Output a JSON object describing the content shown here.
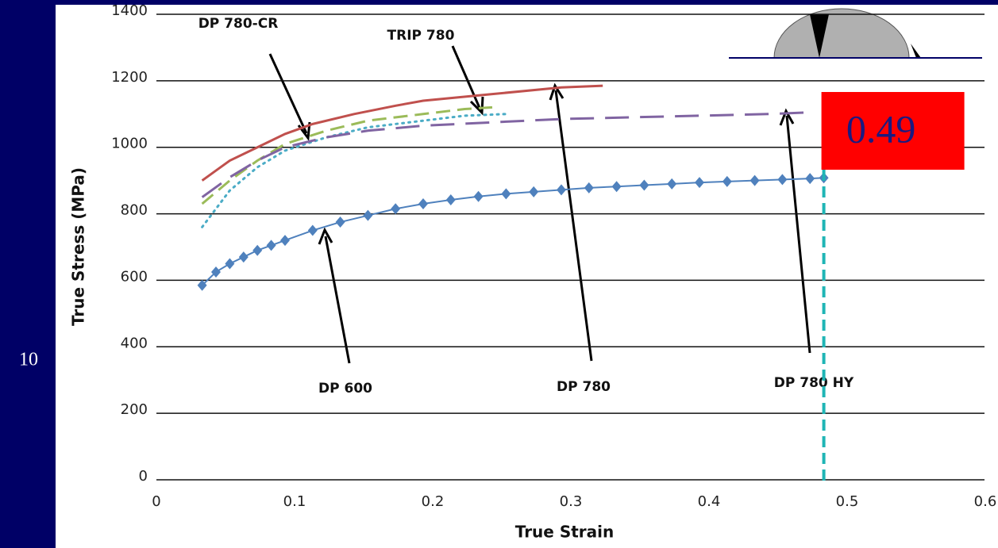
{
  "slide_number": "10",
  "chart_data": {
    "type": "line",
    "y_label": "True Stress (MPa)",
    "x_label": "True Strain",
    "xlim": [
      0,
      0.6
    ],
    "xticks": [
      0,
      0.1,
      0.2,
      0.3,
      0.4,
      0.5,
      0.6
    ],
    "ylim": [
      0,
      1400
    ],
    "yticks": [
      0,
      200,
      400,
      600,
      800,
      1000,
      1200,
      1400
    ],
    "grid": true,
    "marker_x": 0.49,
    "series": [
      {
        "name": "DP 780",
        "color": "#c0504d",
        "style": "solid",
        "x": [
          0.04,
          0.05,
          0.06,
          0.08,
          0.1,
          0.12,
          0.15,
          0.18,
          0.2,
          0.25,
          0.3,
          0.33
        ],
        "values": [
          900,
          930,
          960,
          1000,
          1040,
          1070,
          1100,
          1125,
          1140,
          1160,
          1180,
          1185
        ]
      },
      {
        "name": "DP 780-CR",
        "color": "#9bbb59",
        "style": "dashed",
        "x": [
          0.04,
          0.06,
          0.08,
          0.1,
          0.13,
          0.16,
          0.2,
          0.23,
          0.25
        ],
        "values": [
          830,
          900,
          960,
          1010,
          1050,
          1080,
          1100,
          1115,
          1120
        ]
      },
      {
        "name": "TRIP 780",
        "color": "#4bacc6",
        "style": "dotted",
        "x": [
          0.04,
          0.06,
          0.08,
          0.1,
          0.13,
          0.16,
          0.2,
          0.23,
          0.26
        ],
        "values": [
          760,
          870,
          940,
          990,
          1030,
          1060,
          1080,
          1095,
          1100
        ]
      },
      {
        "name": "DP 780 HY",
        "color": "#8064a2",
        "style": "longdash",
        "x": [
          0.04,
          0.06,
          0.08,
          0.1,
          0.13,
          0.16,
          0.2,
          0.25,
          0.3,
          0.35,
          0.4,
          0.45,
          0.48
        ],
        "values": [
          850,
          910,
          960,
          1000,
          1030,
          1050,
          1065,
          1075,
          1085,
          1090,
          1095,
          1100,
          1105
        ]
      },
      {
        "name": "DP 600",
        "color": "#4f81bd",
        "style": "markers",
        "x": [
          0.04,
          0.05,
          0.06,
          0.07,
          0.08,
          0.09,
          0.1,
          0.12,
          0.14,
          0.16,
          0.18,
          0.2,
          0.22,
          0.24,
          0.26,
          0.28,
          0.3,
          0.32,
          0.34,
          0.36,
          0.38,
          0.4,
          0.42,
          0.44,
          0.46,
          0.48,
          0.49
        ],
        "values": [
          585,
          625,
          650,
          670,
          690,
          705,
          720,
          750,
          775,
          795,
          815,
          830,
          842,
          852,
          860,
          866,
          872,
          878,
          882,
          886,
          890,
          894,
          897,
          900,
          903,
          906,
          908
        ]
      }
    ]
  }
}
